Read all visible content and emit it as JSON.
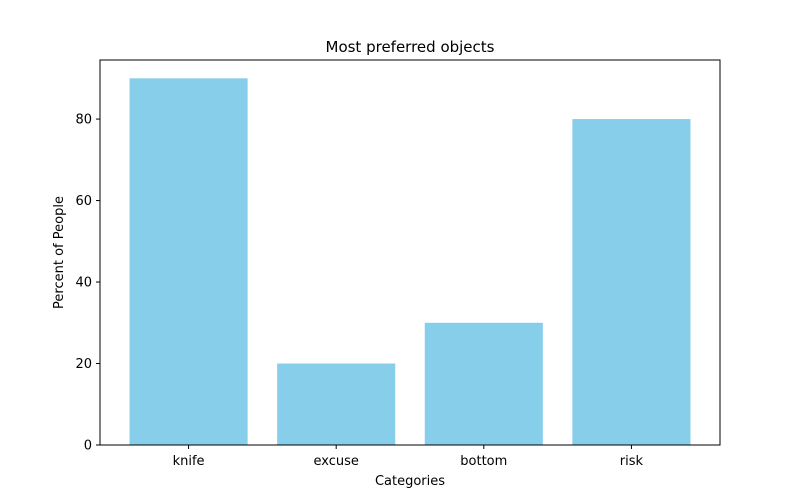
{
  "chart_data": {
    "type": "bar",
    "title": "Most preferred objects",
    "xlabel": "Categories",
    "ylabel": "Percent of People",
    "categories": [
      "knife",
      "excuse",
      "bottom",
      "risk"
    ],
    "values": [
      90,
      20,
      30,
      80
    ],
    "ylim": [
      0,
      94.5
    ],
    "yticks": [
      0,
      20,
      40,
      60,
      80
    ],
    "bar_color": "#87ceeb",
    "grid": false,
    "legend": "none"
  }
}
